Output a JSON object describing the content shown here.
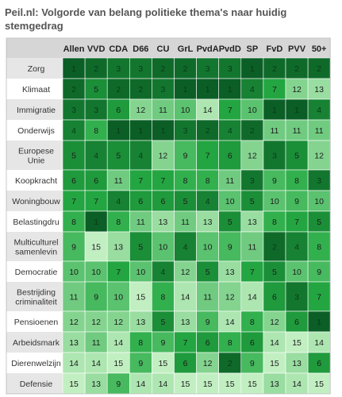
{
  "title": "Peil.nl: Volgorde van belang politieke thema's naar huidig stemgedrag",
  "chart_data": {
    "type": "heatmap",
    "title": "Peil.nl: Volgorde van belang politieke thema's naar huidig stemgedrag",
    "columns": [
      "Allen",
      "VVD",
      "CDA",
      "D66",
      "CU",
      "GrL",
      "PvdA",
      "PvdD",
      "SP",
      "FvD",
      "PVV",
      "50+"
    ],
    "rows": [
      "Zorg",
      "Klimaat",
      "Immigratie",
      "Onderwijs",
      "Europese Unie",
      "Koopkracht",
      "Woningbouw",
      "Belastingdru",
      "Multiculturel samenlevin",
      "Democratie",
      "Bestrijding criminaliteit",
      "Pensioenen",
      "Arbeidsmark",
      "Dierenwelzijn",
      "Defensie"
    ],
    "values": [
      [
        1,
        2,
        3,
        3,
        2,
        2,
        3,
        3,
        1,
        2,
        2,
        2
      ],
      [
        2,
        5,
        2,
        2,
        3,
        1,
        1,
        1,
        4,
        7,
        12,
        13
      ],
      [
        3,
        3,
        6,
        12,
        11,
        10,
        14,
        7,
        10,
        1,
        1,
        4
      ],
      [
        4,
        8,
        1,
        1,
        1,
        3,
        2,
        4,
        2,
        11,
        11,
        11
      ],
      [
        5,
        4,
        5,
        4,
        12,
        9,
        7,
        6,
        12,
        3,
        5,
        12
      ],
      [
        6,
        6,
        11,
        7,
        7,
        8,
        8,
        11,
        3,
        9,
        8,
        3
      ],
      [
        7,
        7,
        4,
        6,
        6,
        5,
        4,
        10,
        5,
        10,
        9,
        10
      ],
      [
        8,
        1,
        8,
        11,
        13,
        11,
        13,
        5,
        13,
        8,
        7,
        5
      ],
      [
        9,
        15,
        13,
        5,
        10,
        4,
        10,
        9,
        11,
        2,
        4,
        8
      ],
      [
        10,
        10,
        7,
        10,
        4,
        12,
        5,
        13,
        7,
        5,
        10,
        9
      ],
      [
        11,
        9,
        10,
        15,
        8,
        14,
        11,
        12,
        14,
        6,
        3,
        7
      ],
      [
        12,
        12,
        12,
        13,
        5,
        13,
        9,
        14,
        8,
        12,
        6,
        1
      ],
      [
        13,
        11,
        14,
        8,
        9,
        7,
        6,
        8,
        6,
        14,
        15,
        14
      ],
      [
        14,
        14,
        15,
        9,
        15,
        6,
        12,
        2,
        9,
        15,
        13,
        6
      ],
      [
        15,
        13,
        9,
        14,
        14,
        15,
        15,
        15,
        15,
        13,
        14,
        15
      ]
    ],
    "color_scale": {
      "low_rank_color": "#0b5e26",
      "high_rank_color": "#c2efc2"
    },
    "grid_line_color": "#ffffff",
    "header_background": "#d6d6d6",
    "row_header_background": "#e6e6e6",
    "alternate_row_header_background": "#ffffff"
  }
}
